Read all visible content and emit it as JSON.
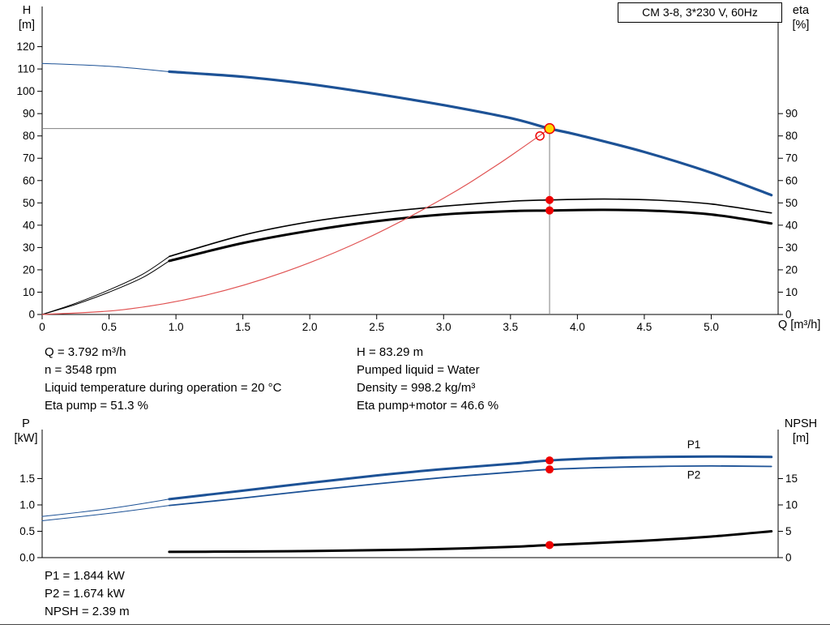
{
  "header": {
    "title_box": "CM 3-8, 3*230 V, 60Hz"
  },
  "info_top": {
    "left": [
      "Q = 3.792 m³/h",
      "n = 3548 rpm",
      "Liquid temperature during operation = 20 °C",
      "Eta pump = 51.3 %"
    ],
    "right": [
      "H = 83.29 m",
      "Pumped liquid = Water",
      "Density = 998.2 kg/m³",
      "Eta pump+motor = 46.6 %"
    ]
  },
  "info_bottom": [
    "P1 = 1.844 kW",
    "P2 = 1.674 kW",
    "NPSH = 2.39 m"
  ],
  "colors": {
    "curve_blue": "#1d5296",
    "curve_black": "#000000",
    "curve_red": "#e05252",
    "marker_red": "#ee0000",
    "duty_yellow": "#ffd800",
    "guide_gray": "#808080"
  },
  "chart_data": [
    {
      "type": "line",
      "name": "qh-eta",
      "xlabel": "Q [m³/h]",
      "ylabel_lines": [
        "H",
        "[m]"
      ],
      "y2label_lines": [
        "eta",
        "[%]"
      ],
      "xlim": [
        0,
        5.5
      ],
      "ylim": [
        0,
        138
      ],
      "y2lim": [
        0,
        138
      ],
      "grid": false,
      "xticks": [
        0,
        0.5,
        1.0,
        1.5,
        2.0,
        2.5,
        3.0,
        3.5,
        4.0,
        4.5,
        5.0
      ],
      "xtick_labels": [
        "0",
        "0.5",
        "1.0",
        "1.5",
        "2.0",
        "2.5",
        "3.0",
        "3.5",
        "4.0",
        "4.5",
        "5.0"
      ],
      "yticks": [
        0,
        10,
        20,
        30,
        40,
        50,
        60,
        70,
        80,
        90,
        100,
        110,
        120
      ],
      "ytick_labels": [
        "0",
        "10",
        "20",
        "30",
        "40",
        "50",
        "60",
        "70",
        "80",
        "90",
        "100",
        "110",
        "120"
      ],
      "y2ticks": [
        0,
        10,
        20,
        30,
        40,
        50,
        60,
        70,
        80,
        90
      ],
      "y2tick_labels": [
        "0",
        "10",
        "20",
        "30",
        "40",
        "50",
        "60",
        "70",
        "80",
        "90"
      ],
      "series": [
        {
          "name": "head-curve-leadin",
          "axis": "y",
          "color": "#1d5296",
          "width": 1,
          "points": [
            [
              0,
              112.5
            ],
            [
              0.5,
              111.2
            ],
            [
              0.95,
              108.8
            ]
          ]
        },
        {
          "name": "head-curve",
          "axis": "y",
          "color": "#1d5296",
          "width": 3.2,
          "points": [
            [
              0.95,
              108.8
            ],
            [
              1.5,
              106.5
            ],
            [
              2.0,
              103.2
            ],
            [
              2.5,
              98.8
            ],
            [
              3.0,
              93.8
            ],
            [
              3.5,
              88.0
            ],
            [
              3.792,
              83.29
            ],
            [
              4.0,
              80.5
            ],
            [
              4.5,
              72.8
            ],
            [
              5.0,
              63.5
            ],
            [
              5.45,
              53.5
            ]
          ]
        },
        {
          "name": "eta-pump-leadin",
          "axis": "y2",
          "color": "#000000",
          "width": 1,
          "points": [
            [
              0,
              0
            ],
            [
              0.25,
              5
            ],
            [
              0.5,
              11
            ],
            [
              0.75,
              18
            ],
            [
              0.95,
              26
            ]
          ]
        },
        {
          "name": "eta-pump-curve",
          "axis": "y2",
          "color": "#000000",
          "width": 1.6,
          "points": [
            [
              0.95,
              26
            ],
            [
              1.5,
              35.5
            ],
            [
              2.0,
              41.5
            ],
            [
              2.5,
              45.5
            ],
            [
              3.0,
              48.5
            ],
            [
              3.5,
              50.7
            ],
            [
              3.792,
              51.3
            ],
            [
              4.2,
              51.7
            ],
            [
              4.6,
              51.2
            ],
            [
              5.0,
              49.5
            ],
            [
              5.45,
              45.5
            ]
          ]
        },
        {
          "name": "eta-pump-motor-leadin",
          "axis": "y2",
          "color": "#000000",
          "width": 1,
          "points": [
            [
              0,
              0
            ],
            [
              0.25,
              4.5
            ],
            [
              0.5,
              10
            ],
            [
              0.75,
              16.5
            ],
            [
              0.95,
              24
            ]
          ]
        },
        {
          "name": "eta-pump-motor-curve",
          "axis": "y2",
          "color": "#000000",
          "width": 3,
          "points": [
            [
              0.95,
              24
            ],
            [
              1.5,
              32
            ],
            [
              2.0,
              37.5
            ],
            [
              2.5,
              41.8
            ],
            [
              3.0,
              44.8
            ],
            [
              3.5,
              46.3
            ],
            [
              3.792,
              46.6
            ],
            [
              4.2,
              46.9
            ],
            [
              4.6,
              46.4
            ],
            [
              5.0,
              44.8
            ],
            [
              5.45,
              40.8
            ]
          ]
        },
        {
          "name": "system-curve",
          "axis": "y",
          "color": "#e05252",
          "width": 1.2,
          "points": [
            [
              0,
              0
            ],
            [
              0.6,
              2.1
            ],
            [
              1.2,
              8.3
            ],
            [
              1.8,
              18.8
            ],
            [
              2.4,
              33.4
            ],
            [
              3.0,
              52.1
            ],
            [
              3.4,
              67.0
            ],
            [
              3.792,
              83.29
            ]
          ]
        }
      ],
      "guides": [
        {
          "type": "v",
          "x": 3.792,
          "y1": 0,
          "y2": 83.29,
          "color": "#808080"
        },
        {
          "type": "h",
          "y": 83.29,
          "x1": 0,
          "x2": 3.792,
          "color": "#808080"
        }
      ],
      "markers": [
        {
          "name": "system-point-ring",
          "shape": "ring",
          "x": 3.72,
          "y": 80.0,
          "axis": "y",
          "r": 5,
          "stroke": "#ee0000"
        },
        {
          "name": "duty-point",
          "shape": "dot",
          "x": 3.792,
          "y": 83.29,
          "axis": "y",
          "r": 6,
          "fill": "#ffd800",
          "stroke": "#ee0000"
        },
        {
          "name": "eta-pump-point",
          "shape": "dot",
          "x": 3.792,
          "y": 51.3,
          "axis": "y2",
          "r": 5,
          "fill": "#ee0000"
        },
        {
          "name": "eta-pump-motor-point",
          "shape": "dot",
          "x": 3.792,
          "y": 46.6,
          "axis": "y2",
          "r": 5,
          "fill": "#ee0000"
        }
      ],
      "annotations": []
    },
    {
      "type": "line",
      "name": "power-npsh",
      "xlabel": "",
      "ylabel_lines": [
        "P",
        "[kW]"
      ],
      "y2label_lines": [
        "NPSH",
        "[m]"
      ],
      "xlim": [
        0,
        5.5
      ],
      "ylim": [
        0,
        2.43
      ],
      "y2lim": [
        0,
        24.3
      ],
      "grid": false,
      "xticks": [],
      "xtick_labels": [],
      "yticks": [
        0,
        0.5,
        1.0,
        1.5
      ],
      "ytick_labels": [
        "0.0",
        "0.5",
        "1.0",
        "1.5"
      ],
      "y2ticks": [
        0,
        5,
        10,
        15
      ],
      "y2tick_labels": [
        "0",
        "5",
        "10",
        "15"
      ],
      "series": [
        {
          "name": "p1-leadin",
          "axis": "y",
          "color": "#1d5296",
          "width": 1,
          "points": [
            [
              0,
              0.78
            ],
            [
              0.5,
              0.93
            ],
            [
              0.95,
              1.11
            ]
          ]
        },
        {
          "name": "p1-curve",
          "axis": "y",
          "color": "#1d5296",
          "width": 3,
          "points": [
            [
              0.95,
              1.11
            ],
            [
              1.5,
              1.27
            ],
            [
              2.0,
              1.42
            ],
            [
              2.5,
              1.56
            ],
            [
              3.0,
              1.68
            ],
            [
              3.5,
              1.78
            ],
            [
              3.792,
              1.844
            ],
            [
              4.2,
              1.89
            ],
            [
              4.6,
              1.91
            ],
            [
              5.0,
              1.92
            ],
            [
              5.45,
              1.91
            ]
          ]
        },
        {
          "name": "p2-leadin",
          "axis": "y",
          "color": "#1d5296",
          "width": 1,
          "points": [
            [
              0,
              0.7
            ],
            [
              0.5,
              0.84
            ],
            [
              0.95,
              0.99
            ]
          ]
        },
        {
          "name": "p2-curve",
          "axis": "y",
          "color": "#1d5296",
          "width": 1.8,
          "points": [
            [
              0.95,
              0.99
            ],
            [
              1.5,
              1.13
            ],
            [
              2.0,
              1.27
            ],
            [
              2.5,
              1.4
            ],
            [
              3.0,
              1.52
            ],
            [
              3.5,
              1.62
            ],
            [
              3.792,
              1.674
            ],
            [
              4.2,
              1.71
            ],
            [
              4.6,
              1.73
            ],
            [
              5.0,
              1.74
            ],
            [
              5.45,
              1.73
            ]
          ]
        },
        {
          "name": "npsh-curve",
          "axis": "y2",
          "color": "#000000",
          "width": 3,
          "points": [
            [
              0.95,
              1.1
            ],
            [
              1.5,
              1.15
            ],
            [
              2.0,
              1.25
            ],
            [
              2.5,
              1.42
            ],
            [
              3.0,
              1.65
            ],
            [
              3.5,
              2.05
            ],
            [
              3.792,
              2.39
            ],
            [
              4.2,
              2.85
            ],
            [
              4.6,
              3.35
            ],
            [
              5.0,
              4.0
            ],
            [
              5.45,
              5.0
            ]
          ]
        }
      ],
      "guides": [],
      "markers": [
        {
          "name": "p1-point",
          "shape": "dot",
          "x": 3.792,
          "y": 1.844,
          "axis": "y",
          "r": 5,
          "fill": "#ee0000"
        },
        {
          "name": "p2-point",
          "shape": "dot",
          "x": 3.792,
          "y": 1.674,
          "axis": "y",
          "r": 5,
          "fill": "#ee0000"
        },
        {
          "name": "npsh-point",
          "shape": "dot",
          "x": 3.792,
          "y": 2.39,
          "axis": "y2",
          "r": 5,
          "fill": "#ee0000"
        }
      ],
      "annotations": [
        {
          "text": "P1",
          "x": 4.82,
          "y": 2.08,
          "axis": "y",
          "color": "#1d5296"
        },
        {
          "text": "P2",
          "x": 4.82,
          "y": 1.5,
          "axis": "y",
          "color": "#1d5296"
        }
      ]
    }
  ]
}
